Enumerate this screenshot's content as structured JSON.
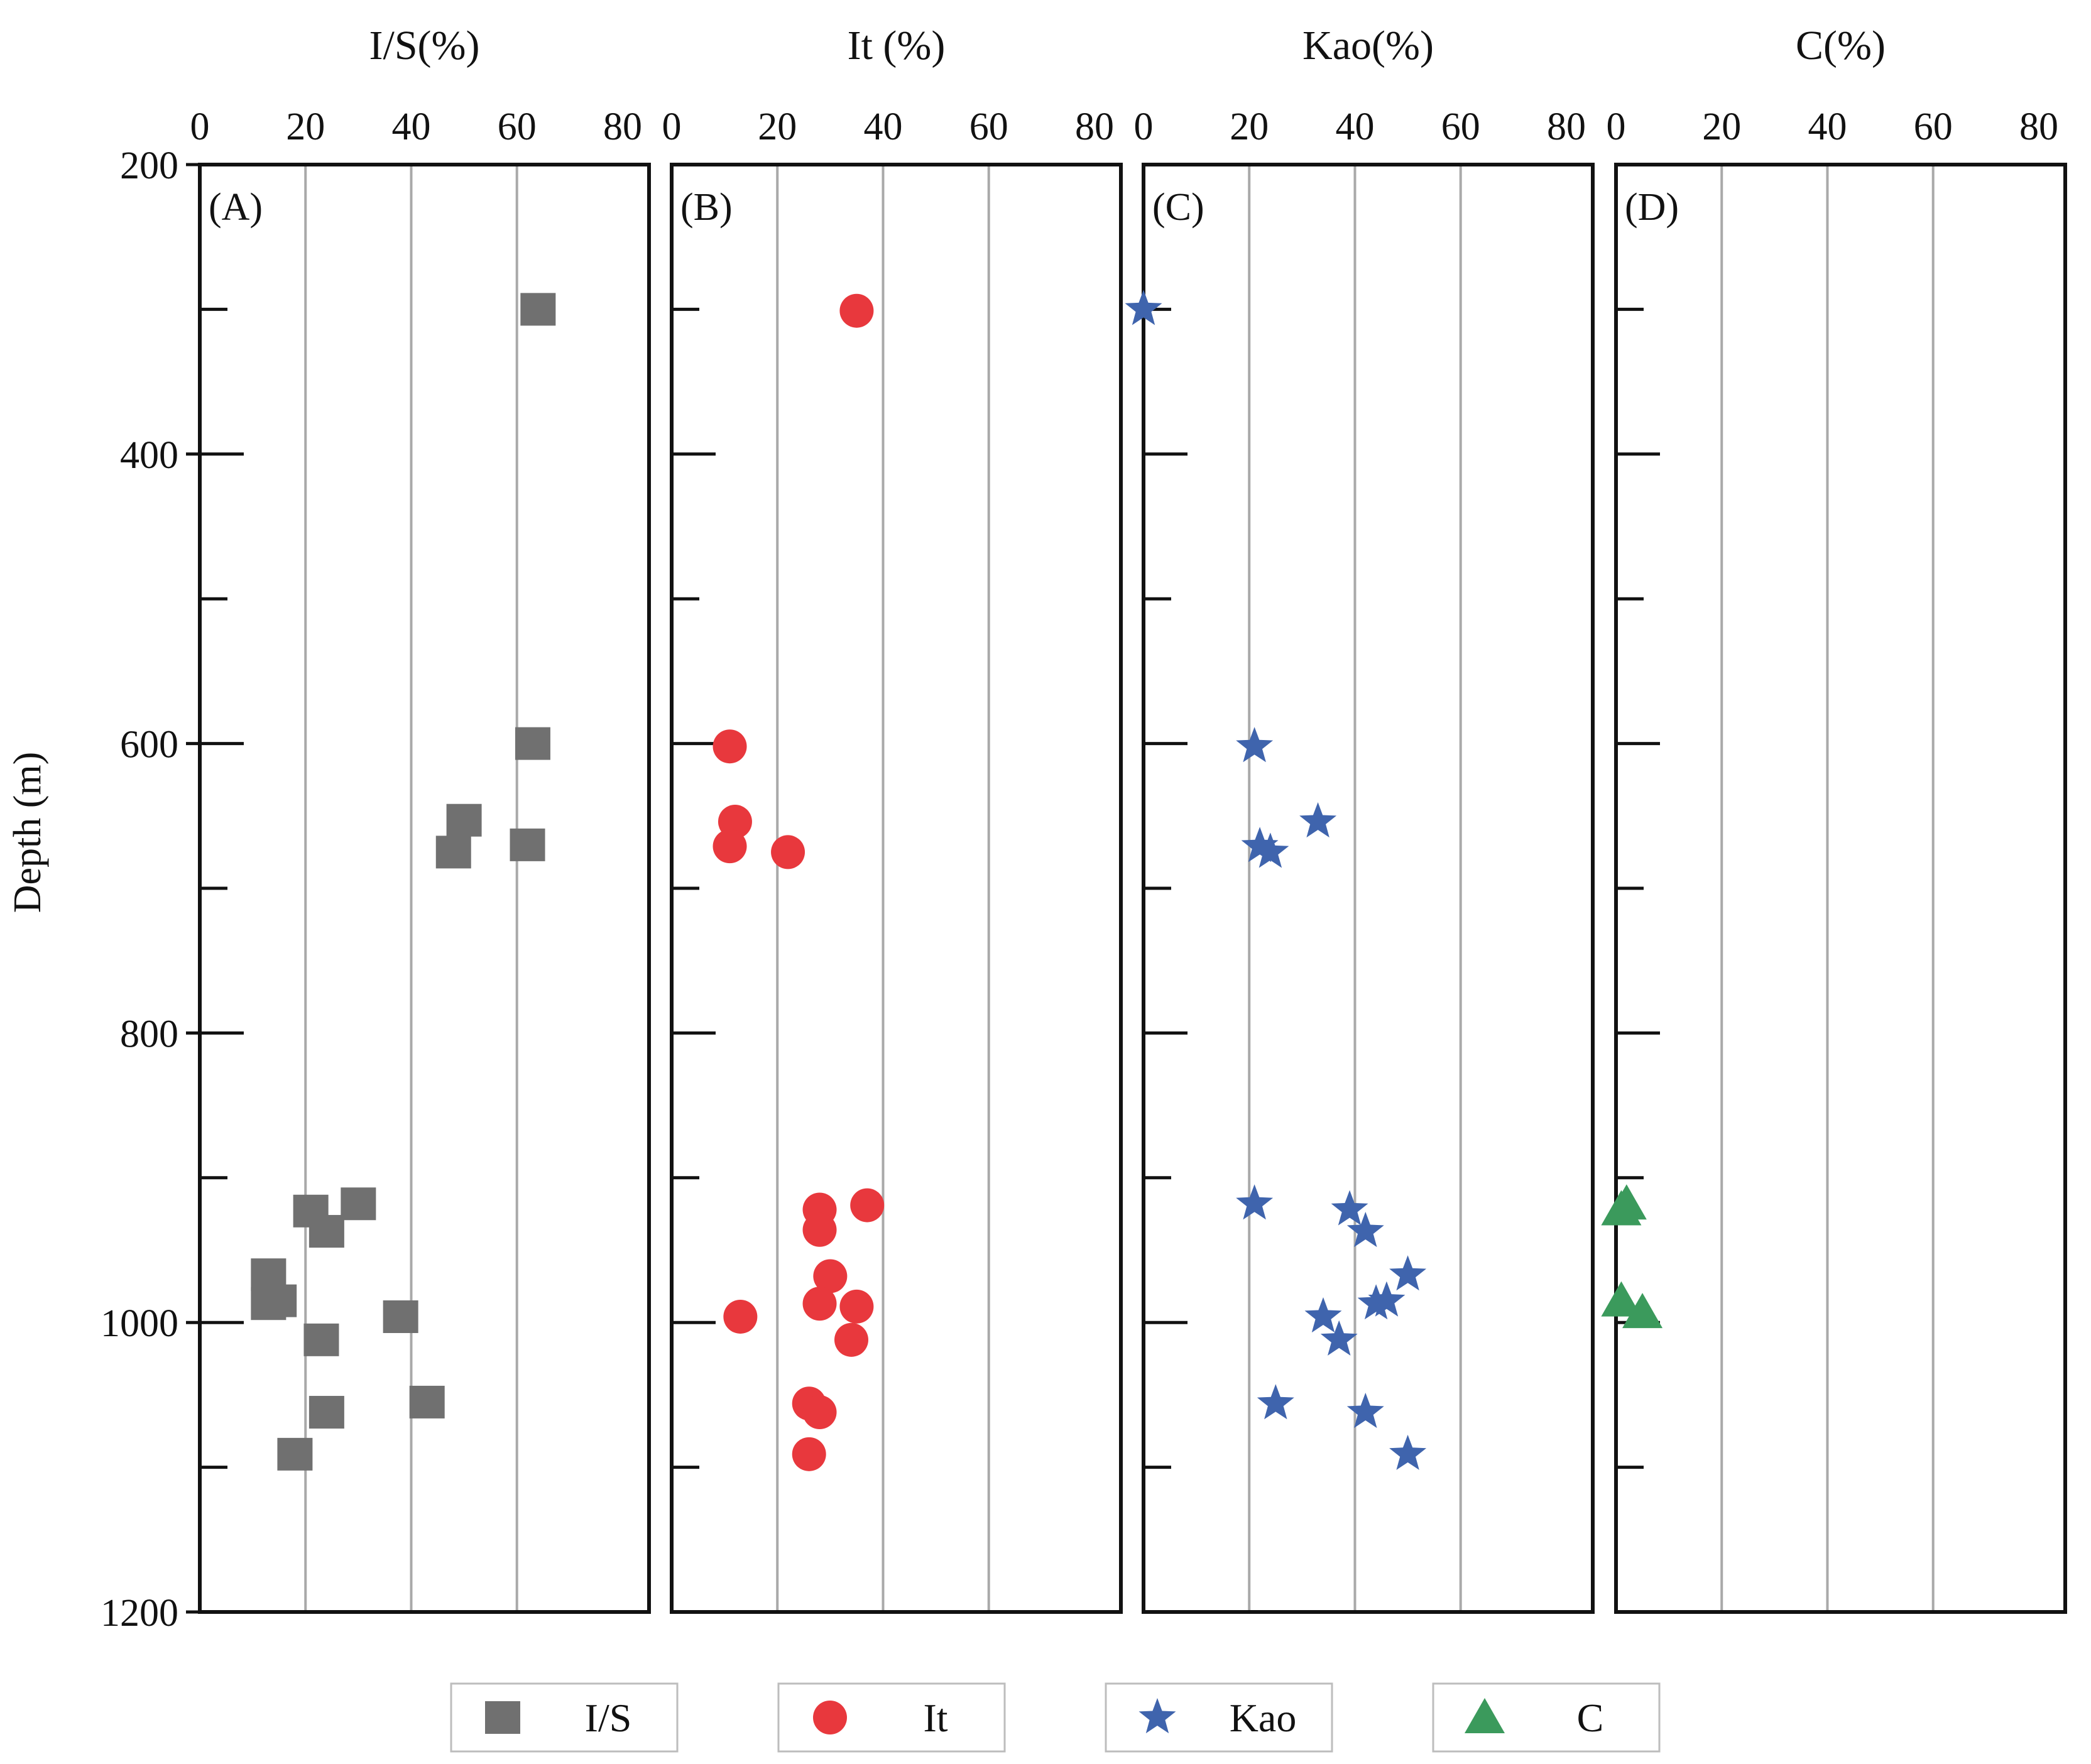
{
  "chart_data": {
    "type": "scatter",
    "y_axis": {
      "label": "Depth (m)",
      "range": [
        200,
        1200
      ],
      "inverted": true,
      "major_ticks": [
        200,
        400,
        600,
        800,
        1000,
        1200
      ],
      "minor_ticks": [
        300,
        500,
        700,
        900,
        1100
      ]
    },
    "x_axis": {
      "range": [
        0,
        85
      ],
      "ticks": [
        0,
        20,
        40,
        60,
        80
      ],
      "grid": [
        20,
        40,
        60
      ]
    },
    "legend": {
      "position": "bottom",
      "entries": [
        "I/S",
        "It",
        "Kao",
        "C"
      ]
    },
    "panels": [
      {
        "id": "A",
        "label": "(A)",
        "title": "I/S(%)",
        "series": "I/S",
        "marker": "square",
        "color": "#707070",
        "points": [
          {
            "x": 64,
            "depth": 300
          },
          {
            "x": 63,
            "depth": 600
          },
          {
            "x": 50,
            "depth": 653
          },
          {
            "x": 48,
            "depth": 675
          },
          {
            "x": 62,
            "depth": 670
          },
          {
            "x": 30,
            "depth": 918
          },
          {
            "x": 21,
            "depth": 923
          },
          {
            "x": 24,
            "depth": 937
          },
          {
            "x": 13,
            "depth": 967
          },
          {
            "x": 13,
            "depth": 987
          },
          {
            "x": 15,
            "depth": 985
          },
          {
            "x": 38,
            "depth": 996
          },
          {
            "x": 23,
            "depth": 1012
          },
          {
            "x": 43,
            "depth": 1055
          },
          {
            "x": 24,
            "depth": 1062
          },
          {
            "x": 18,
            "depth": 1091
          }
        ]
      },
      {
        "id": "B",
        "label": "(B)",
        "title": "It (%)",
        "series": "It",
        "marker": "circle",
        "color": "#e8383d",
        "points": [
          {
            "x": 35,
            "depth": 301
          },
          {
            "x": 11,
            "depth": 602
          },
          {
            "x": 12,
            "depth": 654
          },
          {
            "x": 11,
            "depth": 671
          },
          {
            "x": 22,
            "depth": 675
          },
          {
            "x": 37,
            "depth": 919
          },
          {
            "x": 28,
            "depth": 922
          },
          {
            "x": 28,
            "depth": 936
          },
          {
            "x": 30,
            "depth": 968
          },
          {
            "x": 28,
            "depth": 987
          },
          {
            "x": 35,
            "depth": 989
          },
          {
            "x": 13,
            "depth": 996
          },
          {
            "x": 34,
            "depth": 1012
          },
          {
            "x": 26,
            "depth": 1056
          },
          {
            "x": 28,
            "depth": 1062
          },
          {
            "x": 26,
            "depth": 1091
          }
        ]
      },
      {
        "id": "C",
        "label": "(C)",
        "title": "Kao(%)",
        "series": "Kao",
        "marker": "star",
        "color": "#3f64ad",
        "points": [
          {
            "x": 0,
            "depth": 300
          },
          {
            "x": 21,
            "depth": 602
          },
          {
            "x": 33,
            "depth": 654
          },
          {
            "x": 22,
            "depth": 671
          },
          {
            "x": 24,
            "depth": 675
          },
          {
            "x": 21,
            "depth": 918
          },
          {
            "x": 39,
            "depth": 922
          },
          {
            "x": 42,
            "depth": 937
          },
          {
            "x": 50,
            "depth": 967
          },
          {
            "x": 44,
            "depth": 987
          },
          {
            "x": 46,
            "depth": 985
          },
          {
            "x": 34,
            "depth": 996
          },
          {
            "x": 37,
            "depth": 1012
          },
          {
            "x": 25,
            "depth": 1056
          },
          {
            "x": 42,
            "depth": 1062
          },
          {
            "x": 50,
            "depth": 1091
          }
        ]
      },
      {
        "id": "D",
        "label": "(D)",
        "title": "C(%)",
        "series": "C",
        "marker": "triangle",
        "color": "#3b9a5c",
        "points": [
          {
            "x": 2,
            "depth": 918
          },
          {
            "x": 1,
            "depth": 922
          },
          {
            "x": 1,
            "depth": 985
          },
          {
            "x": 5,
            "depth": 993
          }
        ]
      }
    ]
  }
}
